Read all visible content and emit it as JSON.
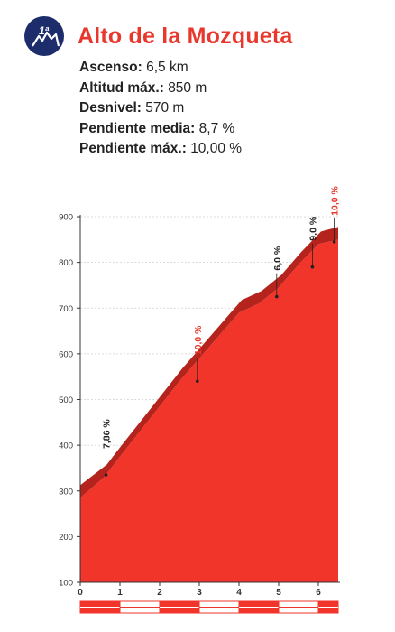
{
  "category": "1ª",
  "title": "Alto de la Mozqueta",
  "stats": [
    {
      "label": "Ascenso:",
      "value": "6,5 km"
    },
    {
      "label": "Altitud máx.:",
      "value": "850 m"
    },
    {
      "label": "Desnivel:",
      "value": "570 m"
    },
    {
      "label": "Pendiente media:",
      "value": "8,7 %"
    },
    {
      "label": "Pendiente máx.:",
      "value": "10,00 %"
    }
  ],
  "colors": {
    "title": "#e8372c",
    "badge": "#1d2d6b",
    "fill": "#f2352a",
    "ridge": "#b5231d",
    "highlight_label": "#e8372c"
  },
  "chart_data": {
    "type": "area",
    "x": [
      0,
      0.6,
      1,
      1.5,
      2,
      2.5,
      3,
      3.5,
      4,
      4.5,
      5,
      5.5,
      6,
      6.5
    ],
    "values": [
      285,
      330,
      375,
      430,
      485,
      540,
      590,
      640,
      690,
      710,
      745,
      795,
      840,
      850
    ],
    "xlim": [
      0,
      6.5
    ],
    "ylim": [
      100,
      900
    ],
    "yticks": [
      100,
      200,
      300,
      400,
      500,
      600,
      700,
      800,
      900
    ],
    "xticks": [
      0,
      1,
      2,
      3,
      4,
      5,
      6
    ],
    "grid": true,
    "annotations": [
      {
        "x": 0.65,
        "y": 335,
        "label": "7,86 %",
        "highlight": false
      },
      {
        "x": 2.95,
        "y": 540,
        "label": "10,0 %",
        "highlight": true
      },
      {
        "x": 4.95,
        "y": 725,
        "label": "6,0 %",
        "highlight": false
      },
      {
        "x": 5.85,
        "y": 790,
        "label": "9,0 %",
        "highlight": false
      },
      {
        "x": 6.4,
        "y": 845,
        "label": "10,0 %",
        "highlight": true
      }
    ],
    "bar_segments": [
      {
        "from": 0,
        "to": 1,
        "color": "#f2352a"
      },
      {
        "from": 1,
        "to": 2,
        "color": "#ffffff"
      },
      {
        "from": 2,
        "to": 3,
        "color": "#f2352a"
      },
      {
        "from": 3,
        "to": 4,
        "color": "#ffffff"
      },
      {
        "from": 4,
        "to": 5,
        "color": "#f2352a"
      },
      {
        "from": 5,
        "to": 6,
        "color": "#ffffff"
      },
      {
        "from": 6,
        "to": 6.5,
        "color": "#f2352a"
      }
    ]
  }
}
